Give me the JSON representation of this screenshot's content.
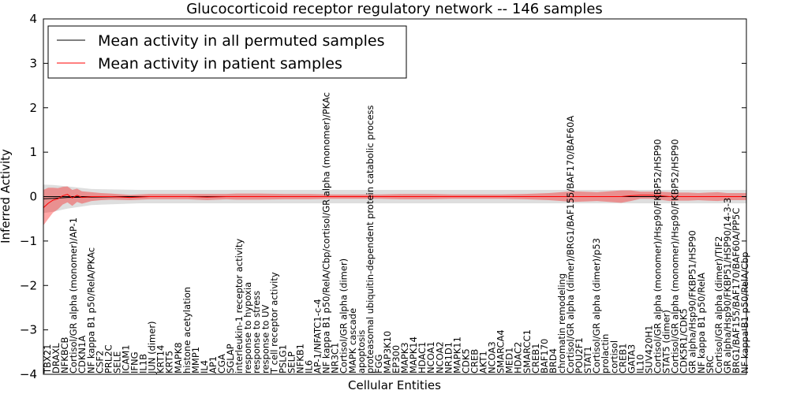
{
  "chart_data": {
    "type": "line",
    "title": "Glucocorticoid receptor regulatory network -- 146 samples",
    "xlabel": "Cellular Entities",
    "ylabel": "Inferred Activity",
    "ylim": [
      -4,
      4
    ],
    "yticks": [
      -4,
      -3,
      -2,
      -1,
      0,
      1,
      2,
      3,
      4
    ],
    "xrange": [
      0,
      146
    ],
    "legend_position": "top-left",
    "legend": [
      {
        "label": "Mean activity in all permuted samples",
        "color": "#000000"
      },
      {
        "label": "Mean activity in patient samples",
        "color": "#ff0000"
      }
    ],
    "entity_labels": [
      "TBX21",
      "DRAXL",
      "NFKBCB",
      "Cortisol/GR alpha (monomer)/AP-1",
      "CDKN1A",
      "NF kappa B1 p50/RelA/PKAc",
      "CSF2",
      "PRL2C",
      "SELE",
      "ICAM1",
      "IFNG",
      "IL1B",
      "JUN (dimer)",
      "KRT14",
      "KRT5",
      "MAPK8",
      "histone acetylation",
      "MMP1",
      "IL4",
      "AP1",
      "CGA",
      "SGLAP",
      "interleukin-1 receptor activity",
      "response to hypoxia",
      "response to stress",
      "response to UV",
      "T cell receptor activity",
      "PSLG1",
      "SELP",
      "NFKB1",
      "IL6",
      "AP-1/NFATC1-c-4",
      "NF kappa B1 p50/RelA/Cbp/cortisol/GR alpha (monomer)/PKAc",
      "NR3C1",
      "Cortisol/GR alpha (dimer)",
      "MAPK cascade",
      "apoptosis",
      "proteasomal ubiquitin-dependent protein catabolic process",
      "FGG",
      "MAP3K10",
      "EP300",
      "MAPK3",
      "MAPK14",
      "HDAC1",
      "NCOA1",
      "NCOA2",
      "NR1D1",
      "MAPK11",
      "CDK5",
      "CREB",
      "AKT1",
      "NCOA3",
      "SMARCA4",
      "MED1",
      "HDAC2",
      "SMARCC1",
      "CREB1",
      "BAF170",
      "BRD4",
      "chromatin remodeling",
      "Cortisol/GR alpha (dimer)/BRG1/BAF155/BAF170/BAF60A",
      "POU2F1",
      "STAT1",
      "Cortisol/GR alpha (dimer)/p53",
      "prolactin",
      "cortisol",
      "CREB1",
      "GATA3",
      "IL10",
      "SUV420H1",
      "Cortisol/GR alpha (monomer)/Hsp90/FKBP52/HSP90",
      "STAT5 (dimer)",
      "Cortisol/GR alpha (monomer)/Hsp90/FKBP52/HSP90",
      "CDK5R1/CDK5",
      "GR alpha/Hsp90/FKBP51/HSP90",
      "NF kappa B1 p50/RelA",
      "SRC",
      "Cortisol/GR alpha (dimer)/TIF2",
      "GR alpha/Hsp90/FKBP51/HSP90/14-3-3",
      "BRG1/BAF155/BAF170/BAF60A/PP5C",
      "NF kappa B1 p50/RelA/Cbp"
    ],
    "series": [
      {
        "name": "Mean activity in all permuted samples",
        "color": "#000000",
        "x": [
          0,
          2,
          5,
          10,
          20,
          30,
          40,
          50,
          60,
          70,
          80,
          90,
          100,
          110,
          120,
          125,
          130,
          135,
          140,
          146
        ],
        "values": [
          -0.05,
          -0.04,
          -0.02,
          -0.01,
          0.0,
          0.0,
          0.0,
          0.0,
          0.0,
          0.0,
          0.0,
          0.0,
          0.0,
          0.0,
          0.0,
          0.0,
          0.0,
          0.0,
          0.0,
          0.0
        ],
        "band_half_width": [
          0.32,
          0.3,
          0.25,
          0.18,
          0.15,
          0.15,
          0.15,
          0.15,
          0.15,
          0.15,
          0.15,
          0.15,
          0.15,
          0.15,
          0.15,
          0.15,
          0.15,
          0.15,
          0.15,
          0.15
        ]
      },
      {
        "name": "Mean activity in patient samples",
        "color": "#ff0000",
        "x": [
          0,
          1,
          2,
          3,
          4,
          5,
          6,
          7,
          8,
          10,
          12,
          14,
          18,
          22,
          26,
          30,
          34,
          38,
          40,
          45,
          50,
          55,
          60,
          65,
          70,
          75,
          80,
          85,
          90,
          95,
          100,
          105,
          110,
          115,
          120,
          122,
          124,
          126,
          128,
          130,
          132,
          134,
          136,
          138,
          140,
          142,
          144,
          146
        ],
        "values": [
          -0.25,
          -0.15,
          -0.08,
          -0.05,
          0.02,
          0.05,
          -0.03,
          0.03,
          -0.02,
          0.0,
          0.0,
          0.0,
          -0.02,
          0.0,
          0.0,
          0.0,
          -0.01,
          0.0,
          0.0,
          0.0,
          0.0,
          0.0,
          0.0,
          0.0,
          0.0,
          0.0,
          0.0,
          0.0,
          0.0,
          0.0,
          0.0,
          0.0,
          0.0,
          0.0,
          0.0,
          0.02,
          0.03,
          0.03,
          0.02,
          0.0,
          0.0,
          0.0,
          0.0,
          0.0,
          0.0,
          0.0,
          0.0,
          0.0
        ],
        "band_half_width": [
          0.4,
          0.35,
          0.28,
          0.24,
          0.2,
          0.18,
          0.18,
          0.15,
          0.14,
          0.1,
          0.08,
          0.07,
          0.06,
          0.06,
          0.06,
          0.06,
          0.07,
          0.06,
          0.07,
          0.07,
          0.06,
          0.06,
          0.05,
          0.05,
          0.05,
          0.06,
          0.06,
          0.05,
          0.05,
          0.05,
          0.06,
          0.08,
          0.12,
          0.1,
          0.14,
          0.12,
          0.08,
          0.08,
          0.09,
          0.1,
          0.09,
          0.09,
          0.08,
          0.09,
          0.1,
          0.08,
          0.08,
          0.08
        ]
      }
    ]
  }
}
